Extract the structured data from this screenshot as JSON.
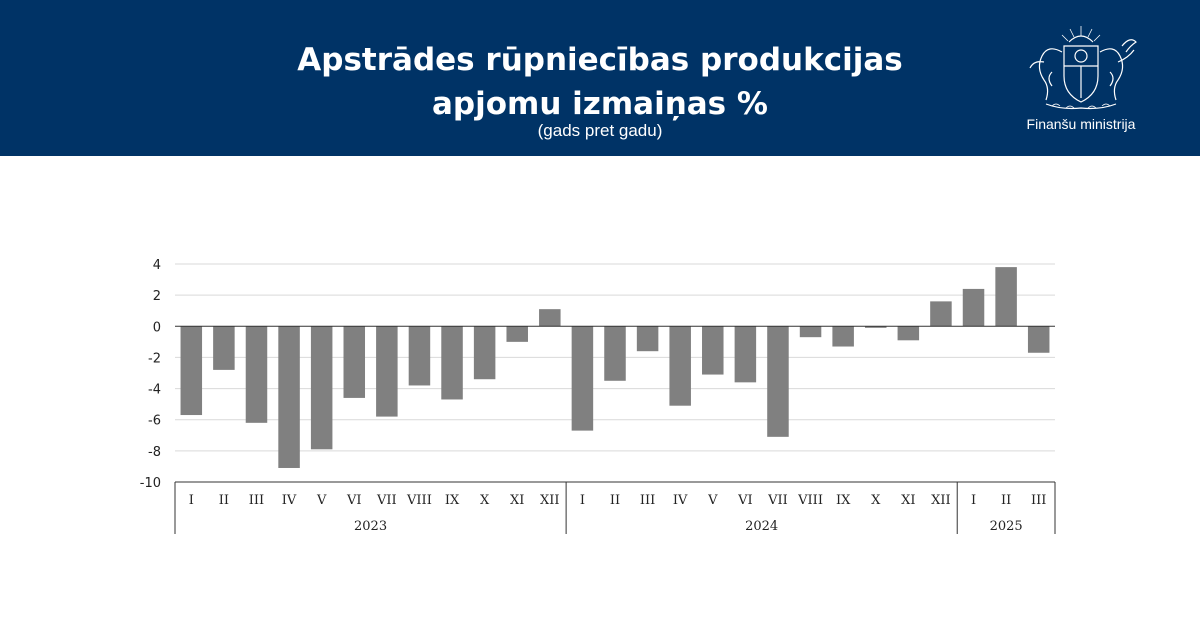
{
  "header": {
    "title_line1": "Apstrādes rūpniecības produkcijas",
    "title_line2": "apjomu izmaiņas %",
    "subtitle": "(gads pret gadu)",
    "ministry": "Finanšu ministrija",
    "background_color": "#003366",
    "logo_icon": "coat-of-arms-icon"
  },
  "chart_data": {
    "type": "bar",
    "bar_color": "#808080",
    "ylim": [
      -10,
      4
    ],
    "yticks": [
      4,
      2,
      0,
      -2,
      -4,
      -6,
      -8,
      -10
    ],
    "grid": true,
    "legend": "none",
    "groups": [
      {
        "label": "2023",
        "categories": [
          "I",
          "II",
          "III",
          "IV",
          "V",
          "VI",
          "VII",
          "VIII",
          "IX",
          "X",
          "XI",
          "XII"
        ],
        "values": [
          -5.7,
          -2.8,
          -6.2,
          -9.1,
          -7.9,
          -4.6,
          -5.8,
          -3.8,
          -4.7,
          -3.4,
          -1.0,
          1.1
        ]
      },
      {
        "label": "2024",
        "categories": [
          "I",
          "II",
          "III",
          "IV",
          "V",
          "VI",
          "VII",
          "VIII",
          "IX",
          "X",
          "XI",
          "XII"
        ],
        "values": [
          -6.7,
          -3.5,
          -1.6,
          -5.1,
          -3.1,
          -3.6,
          -7.1,
          -0.7,
          -1.3,
          -0.1,
          -0.9,
          1.6
        ]
      },
      {
        "label": "2025",
        "categories": [
          "I",
          "II",
          "III"
        ],
        "values": [
          2.4,
          3.8,
          -1.7
        ]
      }
    ]
  }
}
